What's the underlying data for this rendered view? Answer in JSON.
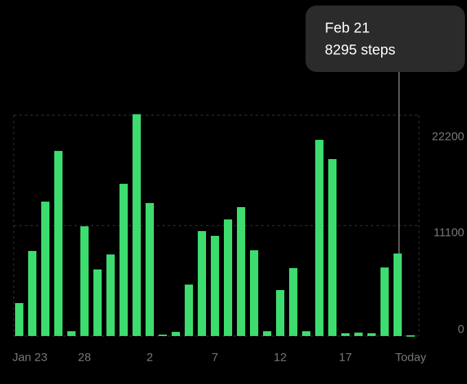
{
  "chart_data": {
    "type": "bar",
    "categories": [
      "Jan 23",
      null,
      null,
      null,
      null,
      "28",
      null,
      null,
      null,
      null,
      "2",
      null,
      null,
      null,
      null,
      "7",
      null,
      null,
      null,
      null,
      "12",
      null,
      null,
      null,
      null,
      "17",
      null,
      null,
      null,
      null,
      "Today"
    ],
    "values": [
      3310,
      8550,
      13510,
      18610,
      480,
      11030,
      6690,
      8200,
      15300,
      22300,
      13370,
      140,
      410,
      5170,
      10550,
      10070,
      11720,
      12960,
      8620,
      480,
      4620,
      6830,
      480,
      19720,
      17790,
      280,
      340,
      280,
      6890,
      8295,
      70
    ],
    "color": "#3ddc6f",
    "ylim": [
      0,
      22200
    ],
    "yticks": [
      0,
      11100,
      22200
    ],
    "grid": true,
    "tooltip": {
      "title": "Feb 21",
      "text": "8295 steps"
    }
  }
}
